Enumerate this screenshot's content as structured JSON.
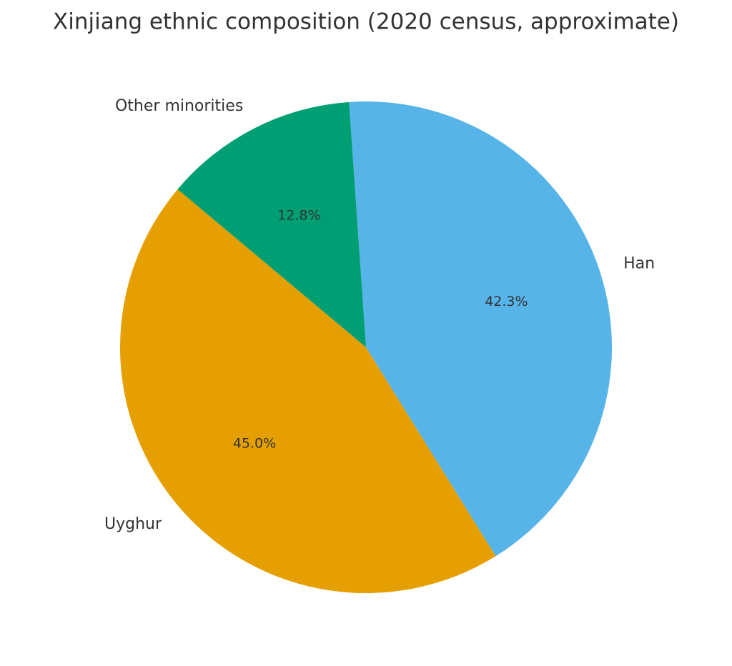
{
  "chart_data": {
    "type": "pie",
    "title": "Xinjiang ethnic composition (2020 census, approximate)",
    "categories": [
      "Uyghur",
      "Han",
      "Other minorities"
    ],
    "values": [
      45.0,
      42.3,
      12.8
    ],
    "value_labels": [
      "45.0%",
      "42.3%",
      "12.8%"
    ],
    "colors": [
      "#E69F00",
      "#56B4E9",
      "#009E73"
    ]
  }
}
